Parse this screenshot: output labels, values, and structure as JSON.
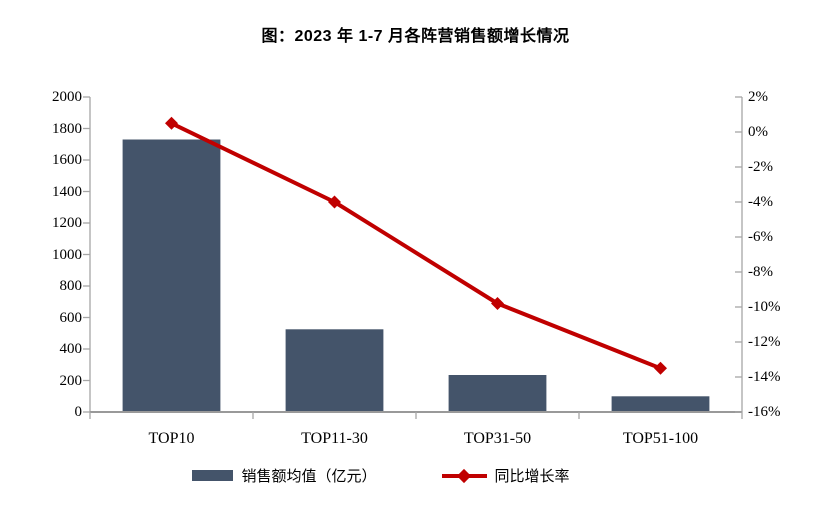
{
  "title": "图：2023 年 1-7 月各阵营销售额增长情况",
  "chart_data": {
    "type": "bar",
    "subtype": "bar-line-combo",
    "title": "图：2023 年 1-7 月各阵营销售额增长情况",
    "categories": [
      "TOP10",
      "TOP11-30",
      "TOP31-50",
      "TOP51-100"
    ],
    "series": [
      {
        "name": "销售额均值（亿元）",
        "type": "bar",
        "axis": "left",
        "values": [
          1730,
          525,
          235,
          100
        ],
        "color": "#44546A"
      },
      {
        "name": "同比增长率",
        "type": "line",
        "axis": "right",
        "unit": "%",
        "marker": "diamond",
        "values": [
          0.5,
          -4.0,
          -9.8,
          -13.5
        ],
        "color": "#C00000"
      }
    ],
    "left_axis": {
      "min": 0,
      "max": 2000,
      "step": 200,
      "tick_labels": [
        "2000",
        "1800",
        "1600",
        "1400",
        "1200",
        "1000",
        "800",
        "600",
        "400",
        "200",
        "0"
      ]
    },
    "right_axis": {
      "min": -16,
      "max": 2,
      "step": 2,
      "tick_labels": [
        "2%",
        "0%",
        "-2%",
        "-4%",
        "-6%",
        "-8%",
        "-10%",
        "-12%",
        "-14%",
        "-16%"
      ]
    },
    "legend_position": "bottom",
    "grid": false,
    "axis_color": "#A6A6A6",
    "text_color": "#000000",
    "background": "#FFFFFF"
  }
}
